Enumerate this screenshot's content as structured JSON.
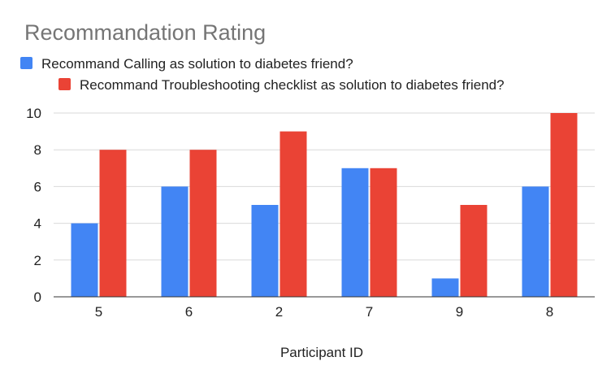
{
  "chart_data": {
    "type": "bar",
    "title": "Recommandation Rating",
    "xlabel": "Participant ID",
    "ylabel": "",
    "categories": [
      "5",
      "6",
      "2",
      "7",
      "9",
      "8"
    ],
    "series": [
      {
        "name": "Recommand Calling as solution to diabetes friend?",
        "color": "#4285f4",
        "values": [
          4,
          6,
          5,
          7,
          1,
          6
        ]
      },
      {
        "name": "Recommand Troubleshooting checklist as solution to diabetes friend?",
        "color": "#ea4335",
        "values": [
          8,
          8,
          9,
          7,
          5,
          10
        ]
      }
    ],
    "ylim": [
      0,
      10
    ],
    "yticks": [
      "0",
      "2",
      "4",
      "6",
      "8",
      "10"
    ],
    "grid": true,
    "legend_position": "top"
  }
}
